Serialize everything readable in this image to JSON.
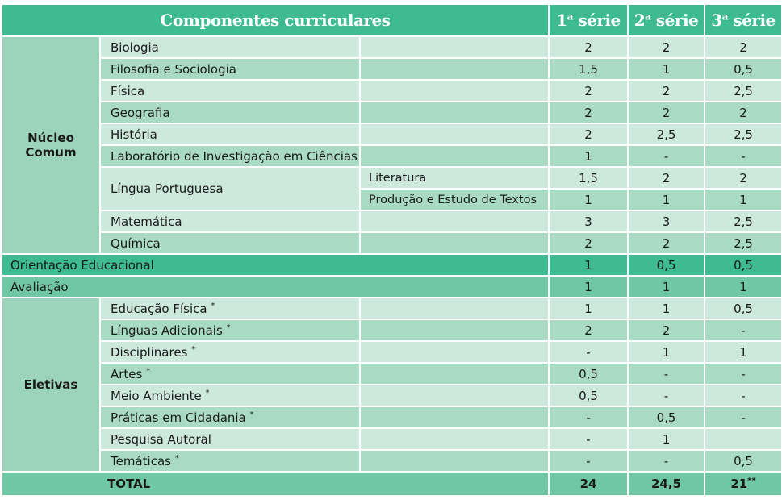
{
  "header": {
    "components": "Componentes curriculares",
    "col1": "1",
    "col1_sup": "a",
    "col1_rest": " série",
    "col2": "2",
    "col2_sup": "a",
    "col2_rest": " série",
    "col3": "3",
    "col3_sup": "a",
    "col3_rest": " série"
  },
  "nucleo": {
    "label": "Núcleo Comum",
    "rows": [
      {
        "subject": "Biologia",
        "detail": "",
        "v1": "2",
        "v2": "2",
        "v3": "2"
      },
      {
        "subject": "Filosofia e Sociologia",
        "detail": "",
        "v1": "1,5",
        "v2": "1",
        "v3": "0,5"
      },
      {
        "subject": "Física",
        "detail": "",
        "v1": "2",
        "v2": "2",
        "v3": "2,5"
      },
      {
        "subject": "Geografia",
        "detail": "",
        "v1": "2",
        "v2": "2",
        "v3": "2"
      },
      {
        "subject": "História",
        "detail": "",
        "v1": "2",
        "v2": "2,5",
        "v3": "2,5"
      },
      {
        "subject": "Laboratório de Investigação em Ciências",
        "detail": "",
        "v1": "1",
        "v2": "-",
        "v3": "-"
      }
    ],
    "lingua": {
      "subject": "Língua Portuguesa",
      "rows": [
        {
          "detail": "Literatura",
          "v1": "1,5",
          "v2": "2",
          "v3": "2"
        },
        {
          "detail": "Produção e Estudo de Textos",
          "v1": "1",
          "v2": "1",
          "v3": "1"
        }
      ]
    },
    "rows_after": [
      {
        "subject": "Matemática",
        "detail": "",
        "v1": "3",
        "v2": "3",
        "v3": "2,5"
      },
      {
        "subject": "Química",
        "detail": "",
        "v1": "2",
        "v2": "2",
        "v3": "2,5"
      }
    ]
  },
  "orientacao": {
    "label": "Orientação Educacional",
    "v1": "1",
    "v2": "0,5",
    "v3": "0,5"
  },
  "avaliacao": {
    "label": "Avaliação",
    "v1": "1",
    "v2": "1",
    "v3": "1"
  },
  "eletivas": {
    "label": "Eletivas",
    "rows": [
      {
        "subject": "Educação Física",
        "mark": "*",
        "v1": "1",
        "v2": "1",
        "v3": "0,5"
      },
      {
        "subject": "Línguas Adicionais",
        "mark": "*",
        "v1": "2",
        "v2": "2",
        "v3": "-"
      },
      {
        "subject": "Disciplinares",
        "mark": "*",
        "v1": "-",
        "v2": "1",
        "v3": "1"
      },
      {
        "subject": "Artes",
        "mark": "*",
        "v1": "0,5",
        "v2": "-",
        "v3": "-"
      },
      {
        "subject": "Meio Ambiente",
        "mark": "*",
        "v1": "0,5",
        "v2": "-",
        "v3": "-"
      },
      {
        "subject": "Práticas em Cidadania",
        "mark": "*",
        "v1": "-",
        "v2": "0,5",
        "v3": "-"
      },
      {
        "subject": "Pesquisa Autoral",
        "mark": "",
        "v1": "-",
        "v2": "1",
        "v3": ""
      },
      {
        "subject": "Temáticas",
        "mark": "*",
        "v1": "-",
        "v2": "-",
        "v3": "0,5"
      }
    ]
  },
  "total": {
    "label": "TOTAL",
    "v1": "24",
    "v2": "24,5",
    "v3": "21",
    "v3_mark": "**"
  }
}
